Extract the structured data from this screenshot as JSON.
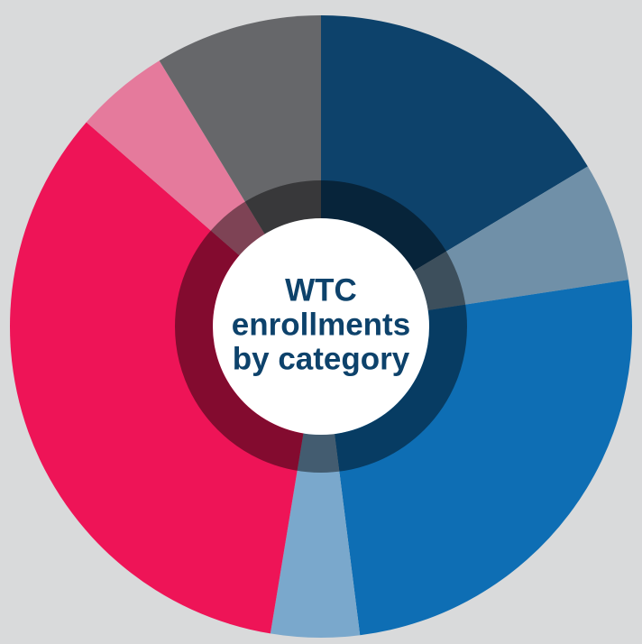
{
  "chart_data": {
    "type": "donut",
    "title": [
      "WTC",
      "enrollments",
      "by category"
    ],
    "categories": [
      null,
      null,
      null,
      null,
      null,
      null,
      null
    ],
    "values": [
      16.4,
      6.2,
      25.4,
      4.6,
      33.8,
      4.9,
      8.7
    ],
    "colors": [
      "#0d426b",
      "#7090a8",
      "#0e6eb4",
      "#7aa8cc",
      "#ee1457",
      "#e57a9c",
      "#66676a"
    ]
  }
}
